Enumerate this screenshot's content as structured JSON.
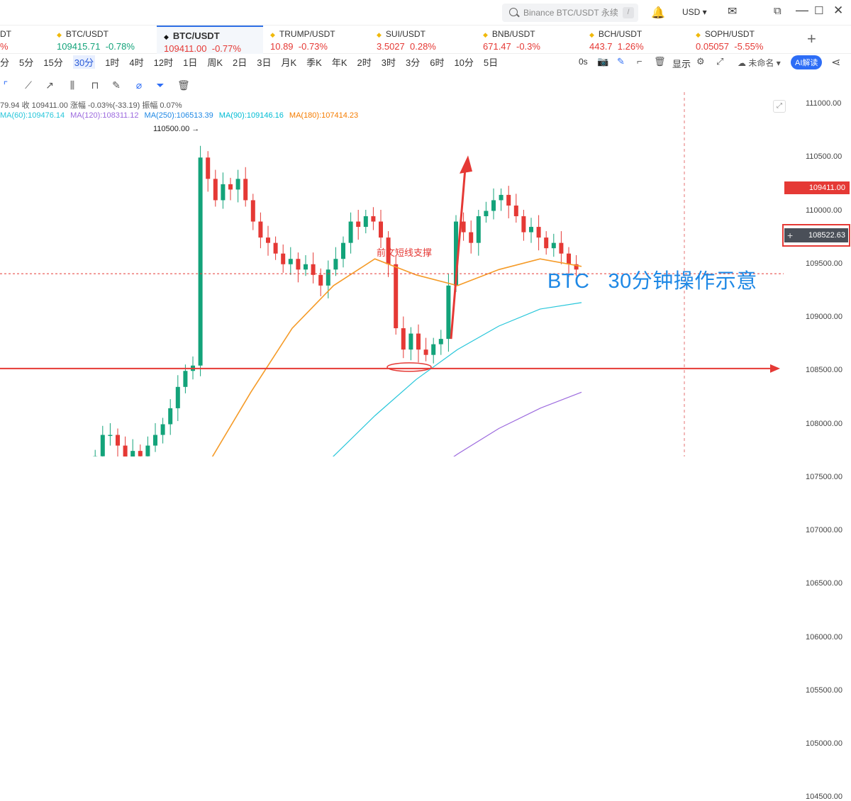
{
  "search": {
    "placeholder": "Binance BTC/USDT 永续",
    "shortcut": "/"
  },
  "currency": "USD",
  "tickers": [
    {
      "name": "DT",
      "price": "",
      "change": "%",
      "dir": "dn"
    },
    {
      "name": "BTC/USDT",
      "price": "109415.71",
      "change": "-0.78%",
      "dir": "up"
    },
    {
      "name": "BTC/USDT",
      "price": "109411.00",
      "change": "-0.77%",
      "dir": "dn"
    },
    {
      "name": "TRUMP/USDT",
      "price": "10.89",
      "change": "-0.73%",
      "dir": "dn"
    },
    {
      "name": "SUI/USDT",
      "price": "3.5027",
      "change": "0.28%",
      "dir": "dn"
    },
    {
      "name": "BNB/USDT",
      "price": "671.47",
      "change": "-0.3%",
      "dir": "dn"
    },
    {
      "name": "BCH/USDT",
      "price": "443.7",
      "change": "1.26%",
      "dir": "dn"
    },
    {
      "name": "SOPH/USDT",
      "price": "0.05057",
      "change": "-5.55%",
      "dir": "dn"
    }
  ],
  "intervals": [
    "分",
    "5分",
    "15分",
    "30分",
    "1时",
    "4时",
    "12时",
    "1日",
    "周K",
    "2日",
    "3日",
    "月K",
    "季K",
    "年K",
    "2时",
    "3时",
    "3分",
    "6时",
    "10分",
    "5日"
  ],
  "selected_interval": "30分",
  "right_controls": {
    "countdown": "0s",
    "display": "显示",
    "layout_name": "未命名",
    "ai_button": "AI解读"
  },
  "ohlc_info": "79.94  收 109411.00  涨幅 -0.03%(-33.19)  振幅 0.07%",
  "ma_info": [
    {
      "label": "MA(60):109476.14",
      "color": "#26c6da"
    },
    {
      "label": "MA(120):108311.12",
      "color": "#9c6ade"
    },
    {
      "label": "MA(250):106513.39",
      "color": "#1e88e5"
    },
    {
      "label": "MA(90):109146.16",
      "color": "#00bcd4"
    },
    {
      "label": "MA(180):107414.23",
      "color": "#f57c00"
    }
  ],
  "price_axis": [
    "111000.00",
    "110500.00",
    "110000.00",
    "109500.00",
    "109000.00",
    "108500.00",
    "108000.00",
    "107500.00",
    "107000.00",
    "106500.00",
    "106000.00",
    "105500.00",
    "105000.00",
    "104500.00"
  ],
  "last_price_label": "109411.00",
  "support_price_label": "108522.63",
  "high_label": "110500.00",
  "annotation_support": "前文短线支撑",
  "overlay_title": "BTC",
  "overlay_subtitle": "30分钟操作示意",
  "colors": {
    "up": "#13a37a",
    "down": "#e53935",
    "accent": "#2d6df6"
  }
}
